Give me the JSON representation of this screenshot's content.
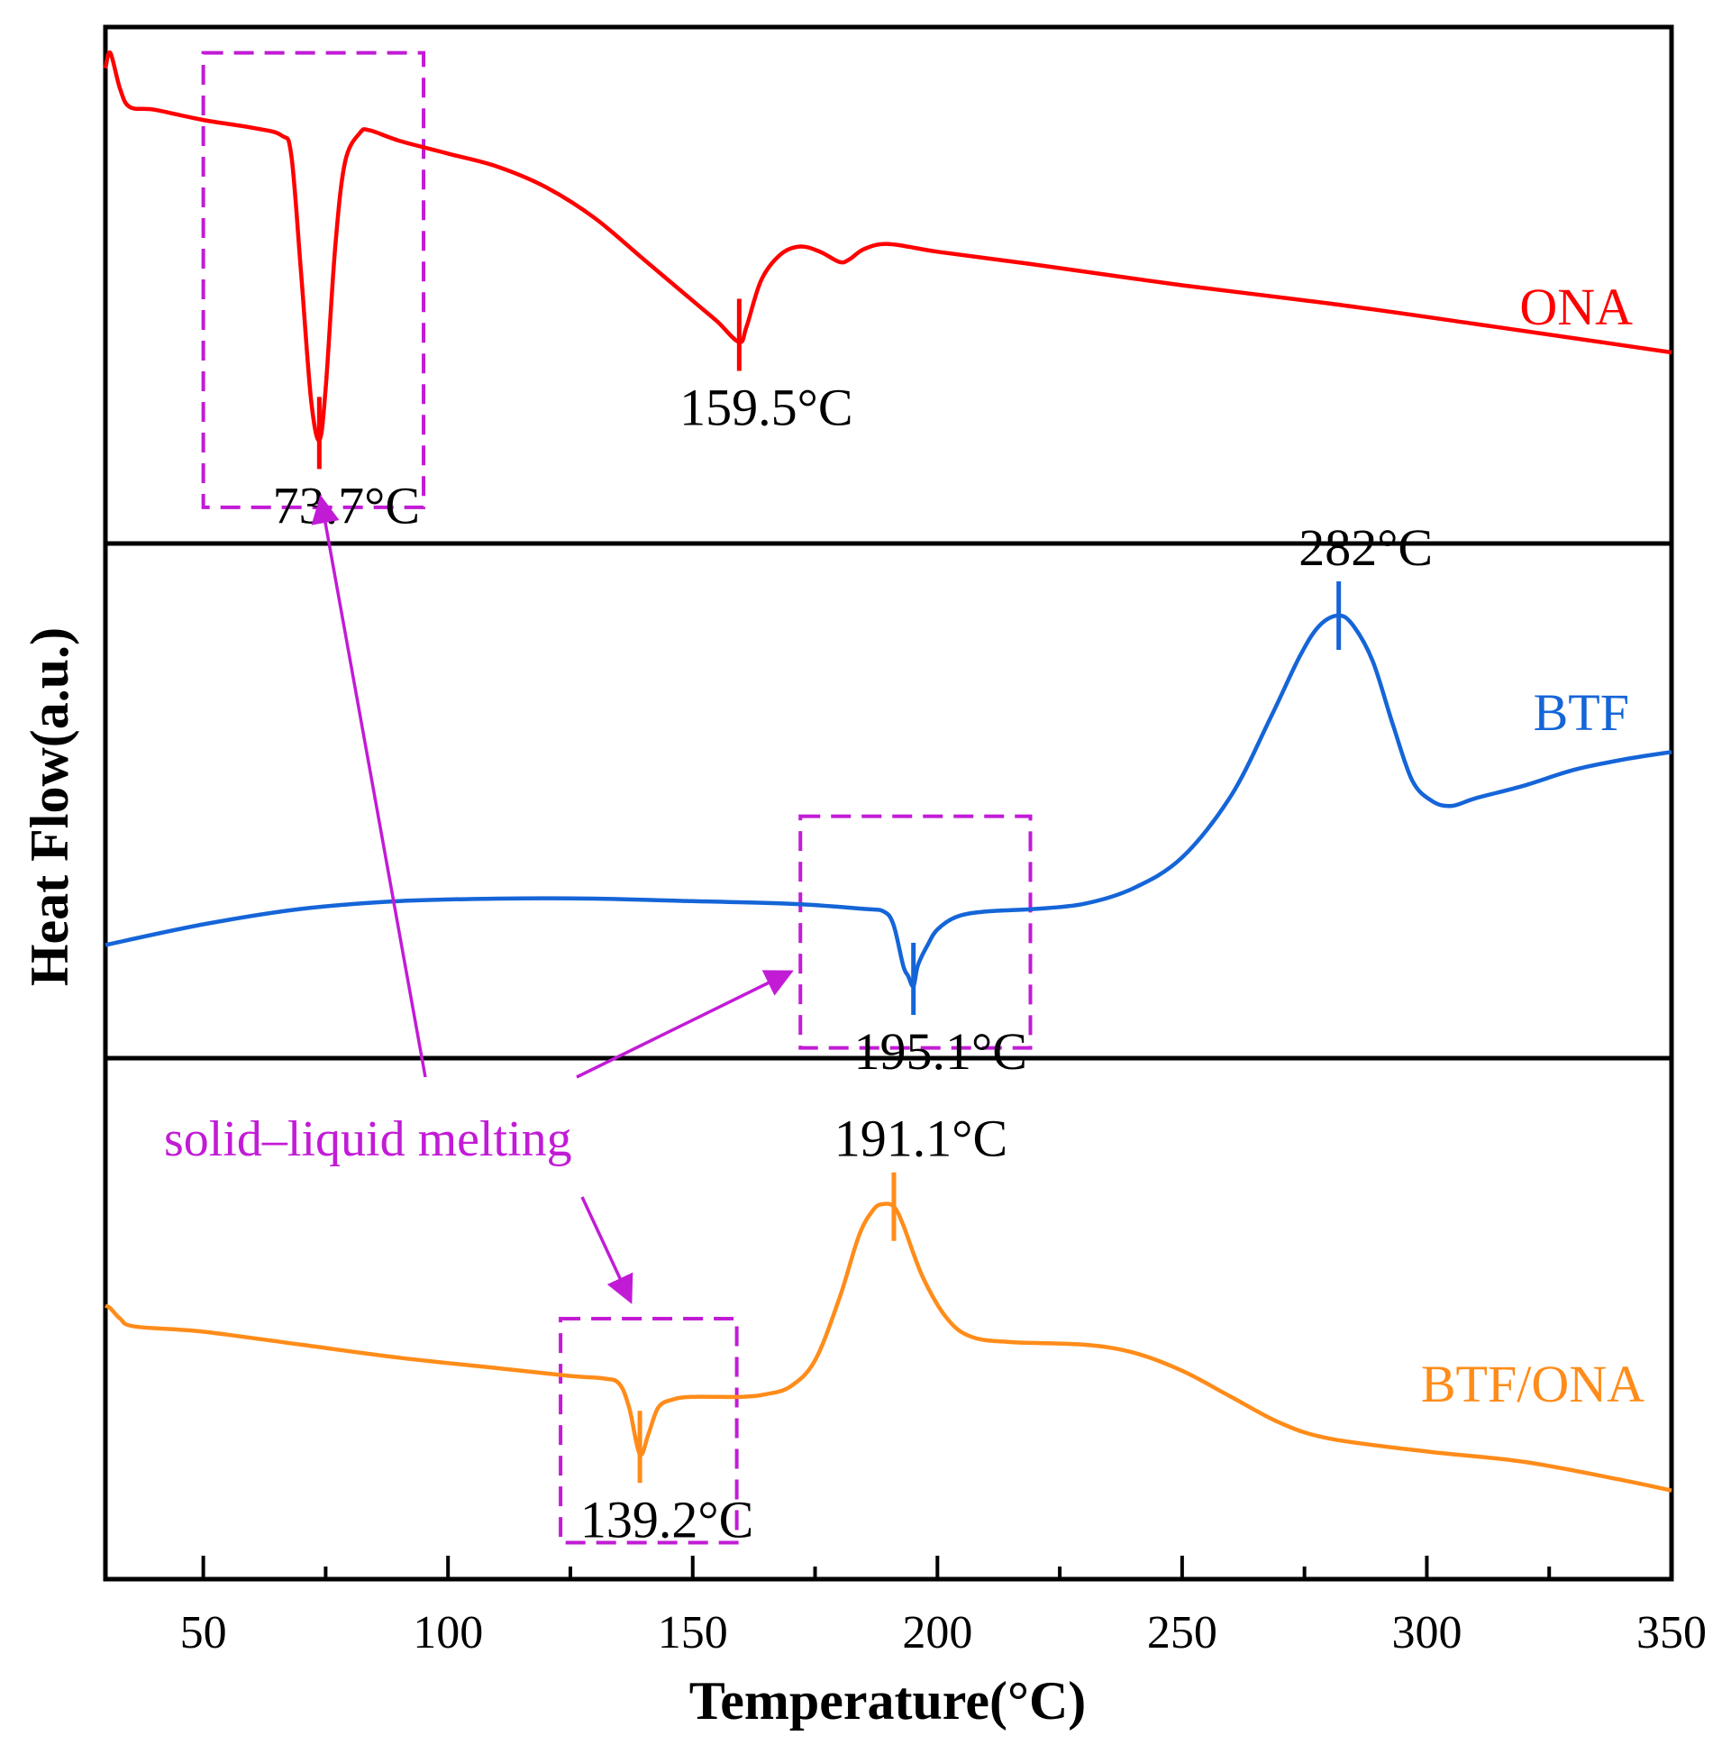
{
  "chart_data": {
    "type": "line",
    "title": "",
    "xlabel": "Temperature(°C)",
    "ylabel": "Heat Flow(a.u.)",
    "xlim": [
      30,
      350
    ],
    "xticks": [
      50,
      100,
      150,
      200,
      250,
      300,
      350
    ],
    "x_tick_labels": [
      "50",
      "100",
      "150",
      "200",
      "250",
      "300",
      "350"
    ],
    "grid": false,
    "panels": 3,
    "series": [
      {
        "name": "ONA",
        "label": "ONA",
        "color": "#ff0000",
        "panel": 0,
        "points": [
          [
            30,
            0.92
          ],
          [
            31,
            0.95
          ],
          [
            33,
            0.88
          ],
          [
            35,
            0.845
          ],
          [
            40,
            0.84
          ],
          [
            50,
            0.82
          ],
          [
            60,
            0.805
          ],
          [
            66,
            0.79
          ],
          [
            68,
            0.75
          ],
          [
            70,
            0.52
          ],
          [
            72,
            0.28
          ],
          [
            73.7,
            0.2
          ],
          [
            75,
            0.3
          ],
          [
            77,
            0.58
          ],
          [
            79,
            0.74
          ],
          [
            82,
            0.795
          ],
          [
            84,
            0.8
          ],
          [
            90,
            0.78
          ],
          [
            100,
            0.755
          ],
          [
            110,
            0.73
          ],
          [
            120,
            0.69
          ],
          [
            130,
            0.63
          ],
          [
            140,
            0.55
          ],
          [
            150,
            0.47
          ],
          [
            155,
            0.43
          ],
          [
            159.5,
            0.39
          ],
          [
            161,
            0.42
          ],
          [
            164,
            0.51
          ],
          [
            168,
            0.56
          ],
          [
            172,
            0.575
          ],
          [
            176,
            0.565
          ],
          [
            180,
            0.545
          ],
          [
            182,
            0.55
          ],
          [
            185,
            0.57
          ],
          [
            190,
            0.58
          ],
          [
            200,
            0.565
          ],
          [
            220,
            0.54
          ],
          [
            250,
            0.5
          ],
          [
            280,
            0.465
          ],
          [
            310,
            0.425
          ],
          [
            350,
            0.37
          ]
        ],
        "peaks": [
          {
            "label": "73.7°C",
            "x": 73.7,
            "y": 0.2,
            "kind": "endothermic"
          },
          {
            "label": "159.5°C",
            "x": 159.5,
            "y": 0.39,
            "kind": "endothermic"
          }
        ]
      },
      {
        "name": "BTF",
        "label": "BTF",
        "color": "#1565d8",
        "panel": 1,
        "points": [
          [
            30,
            0.22
          ],
          [
            50,
            0.26
          ],
          [
            70,
            0.29
          ],
          [
            90,
            0.305
          ],
          [
            110,
            0.31
          ],
          [
            130,
            0.31
          ],
          [
            150,
            0.305
          ],
          [
            170,
            0.3
          ],
          [
            185,
            0.29
          ],
          [
            189,
            0.285
          ],
          [
            191,
            0.26
          ],
          [
            193,
            0.18
          ],
          [
            194,
            0.16
          ],
          [
            195.1,
            0.14
          ],
          [
            196,
            0.18
          ],
          [
            198,
            0.22
          ],
          [
            200,
            0.25
          ],
          [
            204,
            0.275
          ],
          [
            210,
            0.285
          ],
          [
            220,
            0.29
          ],
          [
            230,
            0.3
          ],
          [
            240,
            0.33
          ],
          [
            250,
            0.39
          ],
          [
            260,
            0.51
          ],
          [
            268,
            0.66
          ],
          [
            274,
            0.78
          ],
          [
            278,
            0.84
          ],
          [
            282,
            0.86
          ],
          [
            285,
            0.84
          ],
          [
            289,
            0.77
          ],
          [
            293,
            0.65
          ],
          [
            297,
            0.54
          ],
          [
            301,
            0.5
          ],
          [
            305,
            0.49
          ],
          [
            310,
            0.505
          ],
          [
            320,
            0.53
          ],
          [
            330,
            0.56
          ],
          [
            340,
            0.58
          ],
          [
            350,
            0.595
          ]
        ],
        "peaks": [
          {
            "label": "195.1°C",
            "x": 195.1,
            "y": 0.14,
            "kind": "endothermic"
          },
          {
            "label": "282°C",
            "x": 282,
            "y": 0.86,
            "kind": "exothermic"
          }
        ]
      },
      {
        "name": "BTF/ONA",
        "label": "BTF/ONA",
        "color": "#ff8c1a",
        "panel": 2,
        "points": [
          [
            30,
            0.525
          ],
          [
            31,
            0.52
          ],
          [
            33,
            0.5
          ],
          [
            36,
            0.485
          ],
          [
            50,
            0.475
          ],
          [
            70,
            0.45
          ],
          [
            90,
            0.425
          ],
          [
            110,
            0.405
          ],
          [
            125,
            0.39
          ],
          [
            132,
            0.385
          ],
          [
            135,
            0.375
          ],
          [
            137,
            0.33
          ],
          [
            139.2,
            0.24
          ],
          [
            141,
            0.28
          ],
          [
            143,
            0.33
          ],
          [
            146,
            0.345
          ],
          [
            150,
            0.35
          ],
          [
            160,
            0.35
          ],
          [
            165,
            0.355
          ],
          [
            170,
            0.37
          ],
          [
            175,
            0.42
          ],
          [
            180,
            0.54
          ],
          [
            184,
            0.66
          ],
          [
            187,
            0.71
          ],
          [
            189,
            0.72
          ],
          [
            191.1,
            0.715
          ],
          [
            193,
            0.68
          ],
          [
            197,
            0.58
          ],
          [
            202,
            0.5
          ],
          [
            207,
            0.465
          ],
          [
            215,
            0.455
          ],
          [
            230,
            0.45
          ],
          [
            240,
            0.435
          ],
          [
            250,
            0.4
          ],
          [
            260,
            0.35
          ],
          [
            270,
            0.3
          ],
          [
            280,
            0.27
          ],
          [
            300,
            0.245
          ],
          [
            320,
            0.225
          ],
          [
            340,
            0.19
          ],
          [
            350,
            0.17
          ]
        ],
        "peaks": [
          {
            "label": "139.2°C",
            "x": 139.2,
            "y": 0.24,
            "kind": "endothermic"
          },
          {
            "label": "191.1°C",
            "x": 191.1,
            "y": 0.715,
            "kind": "exothermic"
          }
        ]
      }
    ],
    "highlight_boxes": [
      {
        "panel": 0,
        "x_range": [
          50,
          95
        ],
        "y_range": [
          0.07,
          0.95
        ]
      },
      {
        "panel": 1,
        "x_range": [
          172,
          219
        ],
        "y_range": [
          0.02,
          0.47
        ]
      },
      {
        "panel": 2,
        "x_range": [
          123,
          159
        ],
        "y_range": [
          0.07,
          0.5
        ]
      }
    ],
    "annotation": {
      "text": "solid–liquid melting",
      "color": "#c21bd6",
      "targets": [
        "73.7°C",
        "195.1°C",
        "139.2°C"
      ]
    }
  }
}
